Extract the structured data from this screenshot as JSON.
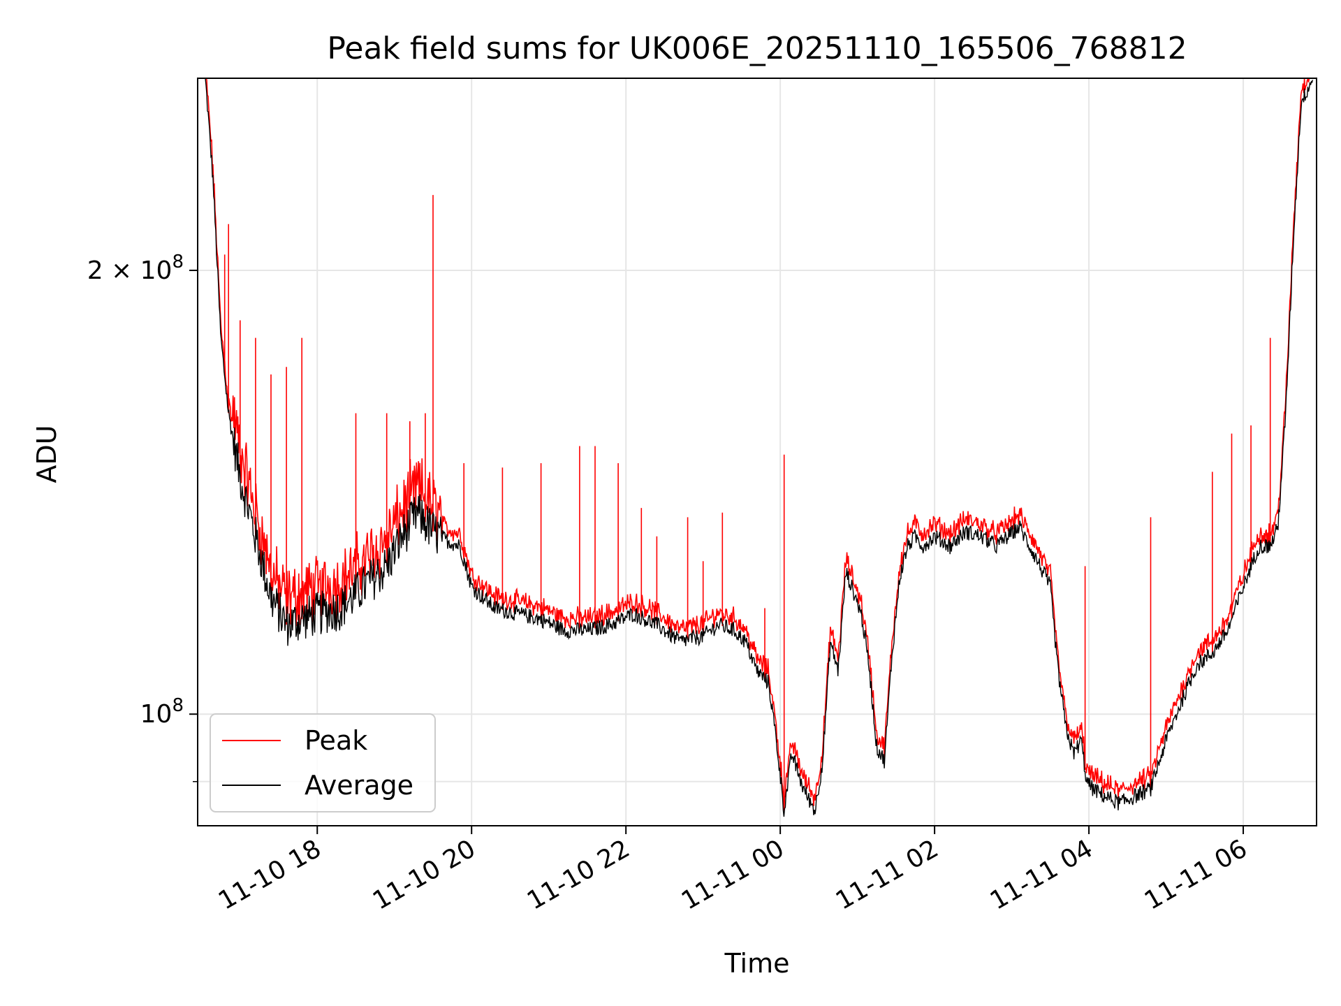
{
  "chart_data": {
    "type": "line",
    "title": "Peak field sums for UK006E_20251110_165506_768812",
    "xlabel": "Time",
    "ylabel": "ADU",
    "yscale": "log",
    "xlim_hours": [
      16.45,
      30.95
    ],
    "ylim": [
      84000000,
      270000000
    ],
    "grid": true,
    "legend_location": "lower left",
    "x_ticks": [
      {
        "hour": 18,
        "label": "11-10 18"
      },
      {
        "hour": 20,
        "label": "11-10 20"
      },
      {
        "hour": 22,
        "label": "11-10 22"
      },
      {
        "hour": 24,
        "label": "11-11 00"
      },
      {
        "hour": 26,
        "label": "11-11 02"
      },
      {
        "hour": 28,
        "label": "11-11 04"
      },
      {
        "hour": 30,
        "label": "11-11 06"
      }
    ],
    "y_ticks": [
      {
        "value": 200000000,
        "base": "2 × 10",
        "exp": "8"
      },
      {
        "value": 100000000,
        "base": "10",
        "exp": "8"
      }
    ],
    "y_minor_ticks": [
      90000000
    ],
    "series": [
      {
        "name": "Peak",
        "color": "#ff0000"
      },
      {
        "name": "Average",
        "color": "#000000"
      }
    ],
    "baseline": {
      "x_hours": [
        16.55,
        16.65,
        16.75,
        16.85,
        17.0,
        17.2,
        17.4,
        17.6,
        17.8,
        18.0,
        18.3,
        18.6,
        18.9,
        19.1,
        19.3,
        19.5,
        19.7,
        19.85,
        20.0,
        20.3,
        20.6,
        20.9,
        21.2,
        21.5,
        21.8,
        22.1,
        22.4,
        22.7,
        23.0,
        23.2,
        23.4,
        23.55,
        23.7,
        23.85,
        23.95,
        24.05,
        24.15,
        24.3,
        24.45,
        24.55,
        24.65,
        24.75,
        24.85,
        24.95,
        25.05,
        25.15,
        25.25,
        25.35,
        25.45,
        25.55,
        25.65,
        25.75,
        25.85,
        26.0,
        26.2,
        26.4,
        26.6,
        26.8,
        26.95,
        27.1,
        27.3,
        27.5,
        27.6,
        27.7,
        27.8,
        27.9,
        27.97,
        28.05,
        28.2,
        28.4,
        28.6,
        28.8,
        29.0,
        29.2,
        29.4,
        29.6,
        29.8,
        30.0,
        30.2,
        30.35,
        30.45,
        30.55,
        30.65,
        30.75,
        30.9
      ],
      "average": [
        270000000,
        230000000,
        180000000,
        160000000,
        145000000,
        132000000,
        120000000,
        115000000,
        116000000,
        117000000,
        118000000,
        122000000,
        126000000,
        132000000,
        137000000,
        133000000,
        131000000,
        130000000,
        122000000,
        118000000,
        117000000,
        116000000,
        114000000,
        114000000,
        115000000,
        117000000,
        115000000,
        112000000,
        113000000,
        115000000,
        114000000,
        112000000,
        107000000,
        105000000,
        96000000,
        86000000,
        94000000,
        89000000,
        86000000,
        93000000,
        112000000,
        107000000,
        125000000,
        121000000,
        117000000,
        108000000,
        95000000,
        93000000,
        110000000,
        124000000,
        130000000,
        132000000,
        130000000,
        132000000,
        130000000,
        133000000,
        132000000,
        130000000,
        132000000,
        134000000,
        128000000,
        122000000,
        107000000,
        98000000,
        94000000,
        96000000,
        90000000,
        89000000,
        88000000,
        87000000,
        88000000,
        89000000,
        96000000,
        102000000,
        108000000,
        110000000,
        114000000,
        122000000,
        130000000,
        130000000,
        134000000,
        160000000,
        210000000,
        260000000,
        270000000
      ]
    },
    "spikes": [
      {
        "hour": 16.8,
        "peak": 205000000
      },
      {
        "hour": 16.85,
        "peak": 215000000
      },
      {
        "hour": 17.0,
        "peak": 185000000
      },
      {
        "hour": 17.2,
        "peak": 180000000
      },
      {
        "hour": 17.4,
        "peak": 170000000
      },
      {
        "hour": 17.6,
        "peak": 172000000
      },
      {
        "hour": 17.8,
        "peak": 180000000
      },
      {
        "hour": 18.5,
        "peak": 160000000
      },
      {
        "hour": 18.9,
        "peak": 160000000
      },
      {
        "hour": 19.2,
        "peak": 158000000
      },
      {
        "hour": 19.4,
        "peak": 160000000
      },
      {
        "hour": 19.5,
        "peak": 225000000
      },
      {
        "hour": 19.9,
        "peak": 148000000
      },
      {
        "hour": 20.4,
        "peak": 147000000
      },
      {
        "hour": 20.9,
        "peak": 148000000
      },
      {
        "hour": 21.4,
        "peak": 152000000
      },
      {
        "hour": 21.6,
        "peak": 152000000
      },
      {
        "hour": 21.9,
        "peak": 148000000
      },
      {
        "hour": 22.2,
        "peak": 138000000
      },
      {
        "hour": 22.4,
        "peak": 132000000
      },
      {
        "hour": 22.8,
        "peak": 136000000
      },
      {
        "hour": 23.0,
        "peak": 127000000
      },
      {
        "hour": 23.25,
        "peak": 137000000
      },
      {
        "hour": 23.8,
        "peak": 118000000
      },
      {
        "hour": 24.05,
        "peak": 150000000
      },
      {
        "hour": 27.95,
        "peak": 126000000
      },
      {
        "hour": 28.8,
        "peak": 136000000
      },
      {
        "hour": 29.6,
        "peak": 146000000
      },
      {
        "hour": 29.85,
        "peak": 155000000
      },
      {
        "hour": 30.1,
        "peak": 157000000
      },
      {
        "hour": 30.35,
        "peak": 180000000
      }
    ]
  }
}
